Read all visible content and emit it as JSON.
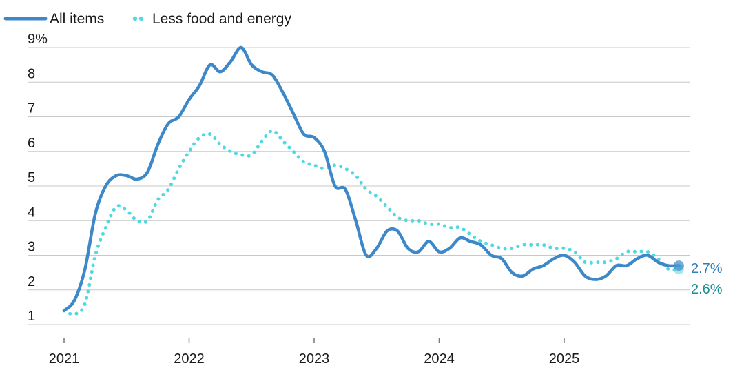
{
  "chart_data": {
    "type": "line",
    "title": "",
    "xlabel": "",
    "ylabel": "",
    "ylim": [
      0.9,
      9.3
    ],
    "xlim": [
      2020.98,
      2026.0
    ],
    "y_ticks": [
      1,
      2,
      3,
      4,
      5,
      6,
      7,
      8,
      9
    ],
    "y_tick_labels": [
      "1",
      "2",
      "3",
      "4",
      "5",
      "6",
      "7",
      "8",
      "9%"
    ],
    "x_ticks": [
      2021,
      2022,
      2023,
      2024,
      2025
    ],
    "x_tick_labels": [
      "2021",
      "2022",
      "2023",
      "2024",
      "2025"
    ],
    "grid": "horizontal",
    "legend_position": "top-left",
    "series": [
      {
        "name": "All items",
        "color": "#3d88c8",
        "style": "solid",
        "end_label": "2.7%",
        "points": [
          [
            2021.0,
            1.4
          ],
          [
            2021.083,
            1.7
          ],
          [
            2021.167,
            2.6
          ],
          [
            2021.25,
            4.2
          ],
          [
            2021.333,
            5.0
          ],
          [
            2021.417,
            5.3
          ],
          [
            2021.5,
            5.3
          ],
          [
            2021.583,
            5.2
          ],
          [
            2021.667,
            5.4
          ],
          [
            2021.75,
            6.2
          ],
          [
            2021.833,
            6.8
          ],
          [
            2021.917,
            7.0
          ],
          [
            2022.0,
            7.5
          ],
          [
            2022.083,
            7.9
          ],
          [
            2022.167,
            8.5
          ],
          [
            2022.25,
            8.3
          ],
          [
            2022.333,
            8.6
          ],
          [
            2022.417,
            9.0
          ],
          [
            2022.5,
            8.5
          ],
          [
            2022.583,
            8.3
          ],
          [
            2022.667,
            8.2
          ],
          [
            2022.75,
            7.7
          ],
          [
            2022.833,
            7.1
          ],
          [
            2022.917,
            6.5
          ],
          [
            2023.0,
            6.4
          ],
          [
            2023.083,
            6.0
          ],
          [
            2023.167,
            5.0
          ],
          [
            2023.25,
            4.9
          ],
          [
            2023.333,
            4.0
          ],
          [
            2023.417,
            3.0
          ],
          [
            2023.5,
            3.2
          ],
          [
            2023.583,
            3.7
          ],
          [
            2023.667,
            3.7
          ],
          [
            2023.75,
            3.2
          ],
          [
            2023.833,
            3.1
          ],
          [
            2023.917,
            3.4
          ],
          [
            2024.0,
            3.1
          ],
          [
            2024.083,
            3.2
          ],
          [
            2024.167,
            3.5
          ],
          [
            2024.25,
            3.4
          ],
          [
            2024.333,
            3.3
          ],
          [
            2024.417,
            3.0
          ],
          [
            2024.5,
            2.9
          ],
          [
            2024.583,
            2.5
          ],
          [
            2024.667,
            2.4
          ],
          [
            2024.75,
            2.6
          ],
          [
            2024.833,
            2.7
          ],
          [
            2024.917,
            2.9
          ],
          [
            2025.0,
            3.0
          ],
          [
            2025.083,
            2.8
          ],
          [
            2025.167,
            2.4
          ],
          [
            2025.25,
            2.3
          ],
          [
            2025.333,
            2.4
          ],
          [
            2025.417,
            2.7
          ],
          [
            2025.5,
            2.7
          ],
          [
            2025.583,
            2.9
          ],
          [
            2025.667,
            3.0
          ],
          [
            2025.75,
            2.8
          ],
          [
            2025.833,
            2.7
          ],
          [
            2025.917,
            2.7
          ]
        ]
      },
      {
        "name": "Less food and energy",
        "color": "#4fd9e3",
        "style": "dotted",
        "end_label": "2.6%",
        "points": [
          [
            2021.0,
            1.4
          ],
          [
            2021.083,
            1.3
          ],
          [
            2021.167,
            1.6
          ],
          [
            2021.25,
            3.0
          ],
          [
            2021.333,
            3.8
          ],
          [
            2021.417,
            4.4
          ],
          [
            2021.5,
            4.3
          ],
          [
            2021.583,
            4.0
          ],
          [
            2021.667,
            4.0
          ],
          [
            2021.75,
            4.6
          ],
          [
            2021.833,
            4.9
          ],
          [
            2021.917,
            5.5
          ],
          [
            2022.0,
            6.0
          ],
          [
            2022.083,
            6.4
          ],
          [
            2022.167,
            6.5
          ],
          [
            2022.25,
            6.2
          ],
          [
            2022.333,
            6.0
          ],
          [
            2022.417,
            5.9
          ],
          [
            2022.5,
            5.9
          ],
          [
            2022.583,
            6.3
          ],
          [
            2022.667,
            6.6
          ],
          [
            2022.75,
            6.3
          ],
          [
            2022.833,
            6.0
          ],
          [
            2022.917,
            5.7
          ],
          [
            2023.0,
            5.6
          ],
          [
            2023.083,
            5.5
          ],
          [
            2023.167,
            5.6
          ],
          [
            2023.25,
            5.5
          ],
          [
            2023.333,
            5.3
          ],
          [
            2023.417,
            4.9
          ],
          [
            2023.5,
            4.7
          ],
          [
            2023.583,
            4.4
          ],
          [
            2023.667,
            4.1
          ],
          [
            2023.75,
            4.0
          ],
          [
            2023.833,
            4.0
          ],
          [
            2023.917,
            3.9
          ],
          [
            2024.0,
            3.9
          ],
          [
            2024.083,
            3.8
          ],
          [
            2024.167,
            3.8
          ],
          [
            2024.25,
            3.6
          ],
          [
            2024.333,
            3.4
          ],
          [
            2024.417,
            3.3
          ],
          [
            2024.5,
            3.2
          ],
          [
            2024.583,
            3.2
          ],
          [
            2024.667,
            3.3
          ],
          [
            2024.75,
            3.3
          ],
          [
            2024.833,
            3.3
          ],
          [
            2024.917,
            3.2
          ],
          [
            2025.0,
            3.2
          ],
          [
            2025.083,
            3.1
          ],
          [
            2025.167,
            2.8
          ],
          [
            2025.25,
            2.8
          ],
          [
            2025.333,
            2.8
          ],
          [
            2025.417,
            2.9
          ],
          [
            2025.5,
            3.1
          ],
          [
            2025.583,
            3.1
          ],
          [
            2025.667,
            3.1
          ],
          [
            2025.75,
            2.9
          ],
          [
            2025.833,
            2.6
          ],
          [
            2025.917,
            2.6
          ]
        ]
      }
    ]
  }
}
